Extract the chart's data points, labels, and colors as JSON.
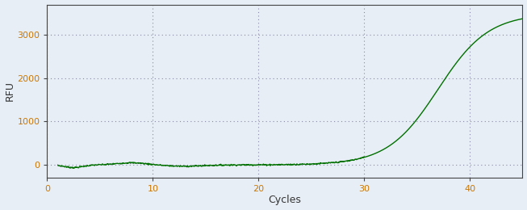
{
  "title": "",
  "xlabel": "Cycles",
  "ylabel": "RFU",
  "line_color": "#007000",
  "background_color": "#e8eef5",
  "plot_bg_color": "#e8eef5",
  "grid_color": "#8888aa",
  "tick_color": "#cc7700",
  "label_color": "#333333",
  "xlim": [
    0,
    45
  ],
  "ylim": [
    -300,
    3700
  ],
  "xticks": [
    0,
    10,
    20,
    30,
    40
  ],
  "yticks": [
    0,
    1000,
    2000,
    3000
  ],
  "sigmoid_L": 3500,
  "sigmoid_k": 0.42,
  "sigmoid_x0": 37.0,
  "x_start": 1,
  "x_end": 45,
  "figsize": [
    6.53,
    2.6
  ],
  "dpi": 100
}
